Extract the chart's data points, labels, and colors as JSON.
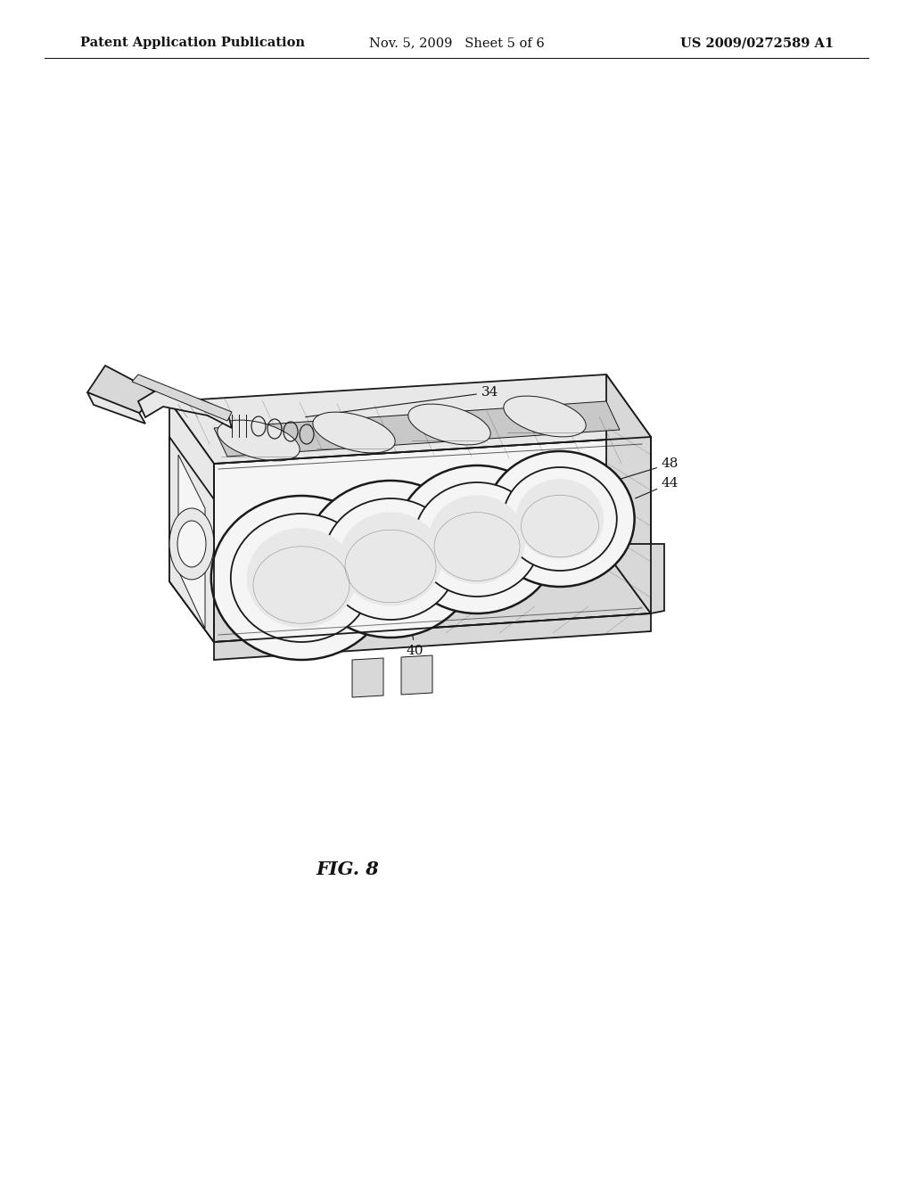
{
  "background_color": "#ffffff",
  "header_left": "Patent Application Publication",
  "header_center": "Nov. 5, 2009   Sheet 5 of 6",
  "header_right": "US 2009/0272589 A1",
  "figure_label": "FIG. 8",
  "line_color": "#1a1a1a",
  "text_color": "#111111",
  "header_fontsize": 10.5,
  "fig_label_fontsize": 15,
  "ref_fontsize": 11,
  "shading_light": "#f5f5f5",
  "shading_mid": "#e8e8e8",
  "shading_dark": "#d8d8d8",
  "shading_darker": "#c8c8c8"
}
